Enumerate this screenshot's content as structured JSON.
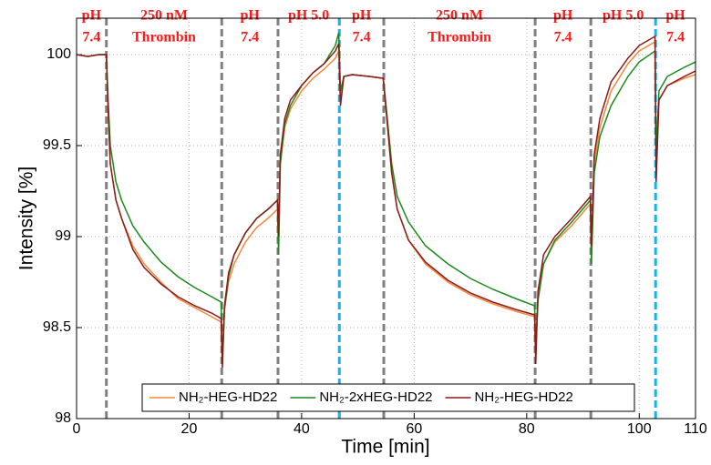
{
  "chart_data": {
    "type": "line",
    "xlabel": "Time [min]",
    "ylabel": "Intensity [%]",
    "xlim": [
      0,
      110
    ],
    "ylim": [
      98,
      100.2
    ],
    "xticks": [
      0,
      20,
      40,
      60,
      80,
      100,
      110
    ],
    "yticks": [
      98,
      98.5,
      99,
      99.5,
      100
    ],
    "grid": true,
    "legend": "bottom",
    "events": [
      {
        "x": 5.3,
        "color": "#808080"
      },
      {
        "x": 25.8,
        "color": "#808080"
      },
      {
        "x": 35.8,
        "color": "#808080"
      },
      {
        "x": 46.7,
        "color": "#1ab0e8"
      },
      {
        "x": 54.6,
        "color": "#808080"
      },
      {
        "x": 81.5,
        "color": "#808080"
      },
      {
        "x": 91.4,
        "color": "#808080"
      },
      {
        "x": 102.9,
        "color": "#1ab0e8"
      }
    ],
    "annotations": [
      {
        "lines": [
          "pH",
          "7.4"
        ]
      },
      {
        "lines": [
          "250 nM",
          "Thrombin"
        ]
      },
      {
        "lines": [
          "pH",
          "7.4"
        ]
      },
      {
        "lines": [
          "pH 5.0"
        ]
      },
      {
        "lines": [
          "pH",
          "7.4"
        ]
      },
      {
        "lines": [
          "250 nM",
          "Thrombin"
        ]
      },
      {
        "lines": [
          "pH",
          "7.4"
        ]
      },
      {
        "lines": [
          "pH 5.0"
        ]
      },
      {
        "lines": [
          "pH",
          "7.4"
        ]
      }
    ],
    "x": [
      0,
      2,
      4,
      5.3,
      5.6,
      6,
      7,
      8,
      10,
      12,
      15,
      18,
      21,
      24,
      25.7,
      25.9,
      26.3,
      27,
      28,
      30,
      32,
      34,
      35.7,
      35.9,
      36.2,
      37,
      38,
      40,
      42,
      44,
      46,
      46.6,
      46.9,
      47.5,
      49,
      52,
      54.5,
      55,
      56,
      57,
      59,
      62,
      66,
      70,
      74,
      78,
      81.4,
      81.6,
      82,
      83,
      85,
      88,
      91.3,
      91.5,
      92,
      93,
      95,
      98,
      100,
      102.8,
      103.0,
      103.5,
      105,
      108,
      110
    ],
    "series": [
      {
        "name": "NH₂-HEG-HD22",
        "color": "#f4873a",
        "values": [
          100,
          99.99,
          100,
          100,
          99.7,
          99.4,
          99.2,
          99.1,
          98.95,
          98.85,
          98.75,
          98.66,
          98.61,
          98.56,
          98.53,
          98.35,
          98.6,
          98.75,
          98.85,
          98.97,
          99.05,
          99.1,
          99.15,
          98.95,
          99.4,
          99.6,
          99.7,
          99.8,
          99.87,
          99.92,
          99.98,
          100.02,
          99.75,
          99.88,
          99.89,
          99.88,
          99.87,
          99.7,
          99.35,
          99.15,
          98.98,
          98.85,
          98.75,
          98.68,
          98.63,
          98.59,
          98.56,
          98.35,
          98.65,
          98.85,
          98.97,
          99.06,
          99.18,
          98.9,
          99.4,
          99.6,
          99.8,
          99.95,
          100.02,
          100.07,
          99.5,
          99.75,
          99.83,
          99.87,
          99.89
        ]
      },
      {
        "name": "NH₂-2xHEG-HD22",
        "color": "#1a8a1a",
        "values": [
          100,
          99.99,
          100,
          100,
          99.75,
          99.5,
          99.3,
          99.2,
          99.06,
          98.97,
          98.86,
          98.78,
          98.72,
          98.67,
          98.64,
          98.3,
          98.6,
          98.78,
          98.9,
          99.02,
          99.1,
          99.15,
          99.2,
          98.9,
          99.4,
          99.62,
          99.72,
          99.83,
          99.9,
          99.95,
          100.05,
          100.12,
          99.8,
          99.88,
          99.89,
          99.88,
          99.87,
          99.72,
          99.4,
          99.22,
          99.08,
          98.95,
          98.85,
          98.77,
          98.71,
          98.66,
          98.62,
          98.4,
          98.65,
          98.85,
          98.98,
          99.08,
          99.2,
          98.85,
          99.35,
          99.55,
          99.72,
          99.88,
          99.96,
          100.02,
          99.45,
          99.8,
          99.88,
          99.93,
          99.96
        ]
      },
      {
        "name": "NH₂-HEG-HD22",
        "color": "#8b1a1a",
        "values": [
          100,
          99.99,
          100,
          100,
          99.7,
          99.4,
          99.2,
          99.1,
          98.93,
          98.83,
          98.74,
          98.67,
          98.62,
          98.58,
          98.55,
          98.28,
          98.62,
          98.8,
          98.9,
          99.02,
          99.1,
          99.15,
          99.2,
          99.0,
          99.45,
          99.65,
          99.75,
          99.83,
          99.9,
          99.95,
          100.02,
          100.06,
          99.72,
          99.88,
          99.89,
          99.88,
          99.87,
          99.7,
          99.35,
          99.15,
          98.98,
          98.86,
          98.76,
          98.69,
          98.64,
          98.6,
          98.57,
          98.3,
          98.7,
          98.9,
          99.0,
          99.1,
          99.22,
          98.95,
          99.45,
          99.65,
          99.85,
          99.98,
          100.05,
          100.1,
          99.3,
          99.75,
          99.83,
          99.88,
          99.91
        ]
      }
    ]
  }
}
